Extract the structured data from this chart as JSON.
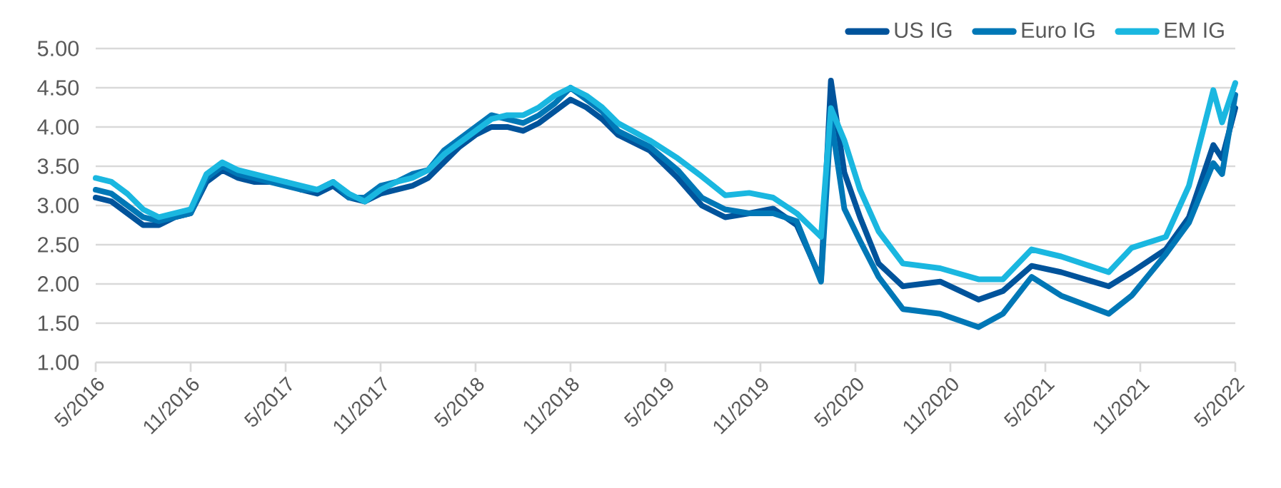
{
  "chart_data": {
    "type": "line",
    "x": [
      "2016-05-01",
      "2016-06-01",
      "2016-07-01",
      "2016-08-01",
      "2016-09-01",
      "2016-10-01",
      "2016-11-01",
      "2016-12-01",
      "2017-01-01",
      "2017-02-01",
      "2017-03-01",
      "2017-04-01",
      "2017-05-01",
      "2017-06-01",
      "2017-07-01",
      "2017-08-01",
      "2017-09-01",
      "2017-10-01",
      "2017-11-01",
      "2017-12-01",
      "2018-01-01",
      "2018-02-01",
      "2018-03-01",
      "2018-04-01",
      "2018-05-01",
      "2018-06-01",
      "2018-07-01",
      "2018-08-01",
      "2018-09-01",
      "2018-10-01",
      "2018-11-01",
      "2018-12-01",
      "2019-01-01",
      "2019-02-01",
      "2019-04-01",
      "2019-05-25",
      "2019-07-10",
      "2019-08-25",
      "2019-10-10",
      "2019-11-25",
      "2020-01-10",
      "2020-02-25",
      "2020-03-15",
      "2020-04-10",
      "2020-05-10",
      "2020-06-15",
      "2020-08-01",
      "2020-10-12",
      "2020-12-25",
      "2021-02-10",
      "2021-04-05",
      "2021-06-01",
      "2021-09-01",
      "2021-10-15",
      "2021-12-20",
      "2022-02-03",
      "2022-03-20",
      "2022-04-06",
      "2022-05-01"
    ],
    "series": [
      {
        "name": "US IG",
        "color": "#00539b",
        "values": [
          3.1,
          3.05,
          2.9,
          2.75,
          2.75,
          2.85,
          2.9,
          3.3,
          3.45,
          3.35,
          3.3,
          3.3,
          3.3,
          3.2,
          3.15,
          3.25,
          3.1,
          3.05,
          3.15,
          3.2,
          3.25,
          3.35,
          3.55,
          3.75,
          3.9,
          4.0,
          4.0,
          3.95,
          4.05,
          4.2,
          4.35,
          4.25,
          4.1,
          3.9,
          3.7,
          3.35,
          3.0,
          2.85,
          2.9,
          2.96,
          2.75,
          2.06,
          4.59,
          3.42,
          2.85,
          2.26,
          1.97,
          2.03,
          1.8,
          1.91,
          2.23,
          2.15,
          1.97,
          2.15,
          2.44,
          2.85,
          3.77,
          3.6,
          4.24
        ]
      },
      {
        "name": "Euro IG",
        "color": "#0077b6",
        "values": [
          3.2,
          3.15,
          3.0,
          2.85,
          2.8,
          2.85,
          2.9,
          3.35,
          3.5,
          3.4,
          3.35,
          3.3,
          3.25,
          3.2,
          3.2,
          3.3,
          3.1,
          3.1,
          3.25,
          3.3,
          3.4,
          3.45,
          3.7,
          3.85,
          4.0,
          4.15,
          4.1,
          4.05,
          4.15,
          4.3,
          4.5,
          4.35,
          4.2,
          3.95,
          3.75,
          3.45,
          3.1,
          2.95,
          2.9,
          2.9,
          2.8,
          2.03,
          4.12,
          2.96,
          2.55,
          2.09,
          1.68,
          1.62,
          1.45,
          1.62,
          2.09,
          1.85,
          1.62,
          1.85,
          2.38,
          2.78,
          3.54,
          3.4,
          4.41
        ]
      },
      {
        "name": "EM IG",
        "color": "#1ab7e0",
        "values": [
          3.35,
          3.3,
          3.15,
          2.95,
          2.85,
          2.9,
          2.95,
          3.4,
          3.55,
          3.45,
          3.4,
          3.35,
          3.3,
          3.25,
          3.2,
          3.3,
          3.15,
          3.05,
          3.2,
          3.3,
          3.35,
          3.45,
          3.65,
          3.8,
          3.95,
          4.1,
          4.15,
          4.15,
          4.25,
          4.4,
          4.5,
          4.4,
          4.25,
          4.05,
          3.83,
          3.6,
          3.37,
          3.13,
          3.16,
          3.1,
          2.9,
          2.6,
          4.24,
          3.83,
          3.2,
          2.67,
          2.26,
          2.2,
          2.06,
          2.06,
          2.44,
          2.35,
          2.15,
          2.46,
          2.6,
          3.25,
          4.47,
          4.06,
          4.56
        ]
      }
    ],
    "xlim": [
      "2016-05-01",
      "2022-05-01"
    ],
    "xticks": [
      {
        "value": "2016-05",
        "label": "5/2016"
      },
      {
        "value": "2016-11",
        "label": "11/2016"
      },
      {
        "value": "2017-05",
        "label": "5/2017"
      },
      {
        "value": "2017-11",
        "label": "11/2017"
      },
      {
        "value": "2018-05",
        "label": "5/2018"
      },
      {
        "value": "2018-11",
        "label": "11/2018"
      },
      {
        "value": "2019-05",
        "label": "5/2019"
      },
      {
        "value": "2019-11",
        "label": "11/2019"
      },
      {
        "value": "2020-05",
        "label": "5/2020"
      },
      {
        "value": "2020-11",
        "label": "11/2020"
      },
      {
        "value": "2021-05",
        "label": "5/2021"
      },
      {
        "value": "2021-11",
        "label": "11/2021"
      },
      {
        "value": "2022-05",
        "label": "5/2022"
      }
    ],
    "ylim": [
      1,
      5
    ],
    "yticks": [
      {
        "value": 1,
        "label": "1.00"
      },
      {
        "value": 1.5,
        "label": "1.50"
      },
      {
        "value": 2,
        "label": "2.00"
      },
      {
        "value": 2.5,
        "label": "2.50"
      },
      {
        "value": 3,
        "label": "3.00"
      },
      {
        "value": 3.5,
        "label": "3.50"
      },
      {
        "value": 4,
        "label": "4.00"
      },
      {
        "value": 4.5,
        "label": "4.50"
      },
      {
        "value": 5,
        "label": "5.00"
      }
    ],
    "grid": "y",
    "legend": "top right",
    "line_style": "solid"
  }
}
